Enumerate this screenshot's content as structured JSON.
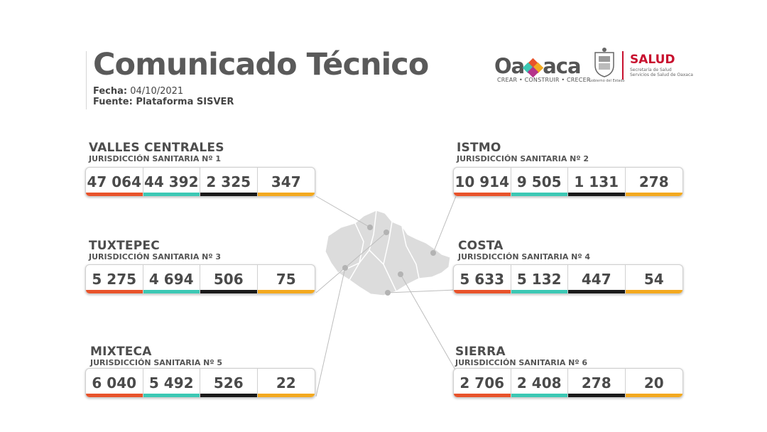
{
  "header": {
    "title": "Comunicado Técnico",
    "fecha_label": "Fecha:",
    "fecha_value": "04/10/2021",
    "fuente_label": "Fuente: Plataforma SISVER"
  },
  "logos": {
    "oaxaca_pre": "Oa",
    "oaxaca_post": "aca",
    "oaxaca_tagline": "CREAR • CONSTRUIR • CRECER",
    "seal_caption": "Gobierno del Estado",
    "salud": "SALUD",
    "salud_sub1": "Secretaría de Salud",
    "salud_sub2": "Servicios de Salud de Oaxaca"
  },
  "colors": {
    "confirmados": "#e8532b",
    "recuperados": "#3cc8b4",
    "defunciones": "#1a1a1a",
    "activos": "#f3a91f",
    "salud_red": "#c8102e"
  },
  "regions": [
    {
      "name": "VALLES CENTRALES",
      "jur": "JURISDICCIÓN SANITARIA Nº 1",
      "values": [
        "47 064",
        "44 392",
        "2 325",
        "347"
      ]
    },
    {
      "name": "ISTMO",
      "jur": "JURISDICCIÓN SANITARIA Nº 2",
      "values": [
        "10 914",
        "9 505",
        "1 131",
        "278"
      ]
    },
    {
      "name": "TUXTEPEC",
      "jur": "JURISDICCIÓN SANITARIA Nº 3",
      "values": [
        "5 275",
        "4 694",
        "506",
        "75"
      ]
    },
    {
      "name": "COSTA",
      "jur": "JURISDICCIÓN SANITARIA Nº 4",
      "values": [
        "5 633",
        "5 132",
        "447",
        "54"
      ]
    },
    {
      "name": "MIXTECA",
      "jur": "JURISDICCIÓN SANITARIA Nº 5",
      "values": [
        "6 040",
        "5 492",
        "526",
        "22"
      ]
    },
    {
      "name": "SIERRA",
      "jur": "JURISDICCIÓN SANITARIA Nº 6",
      "values": [
        "2 706",
        "2 408",
        "278",
        "20"
      ]
    }
  ]
}
